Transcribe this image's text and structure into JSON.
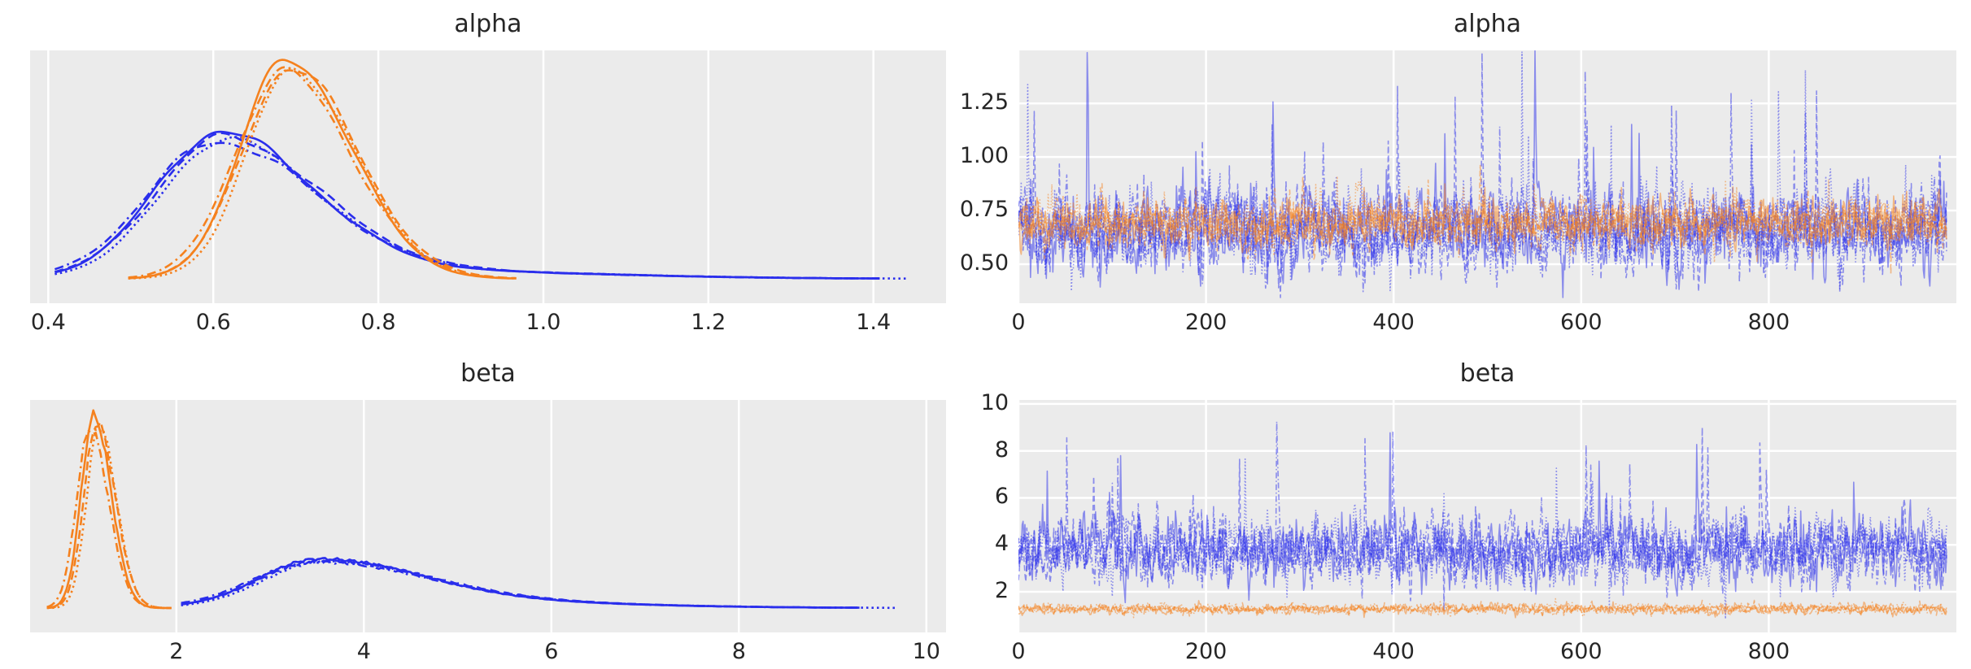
{
  "figure": {
    "bg_color": "#ffffff",
    "axes_bg_color": "#ebebeb",
    "grid_color": "#ffffff",
    "text_color": "#262626",
    "chain_colors": {
      "blue": "#2a2eec",
      "orange": "#f5811e"
    },
    "trace_opacity": 0.5,
    "n_chains_per_group": 4,
    "line_styles_by_chain": [
      "solid",
      "dashed",
      "dashdot",
      "dotted"
    ]
  },
  "chart_data": [
    {
      "id": "alpha-density",
      "type": "kde",
      "title": "alpha",
      "xlabel": "",
      "ylabel": "",
      "xlim": [
        0.378,
        1.488
      ],
      "xticks": [
        0.4,
        0.6,
        0.8,
        1.0,
        1.2,
        1.4
      ],
      "xtick_labels": [
        "0.4",
        "0.6",
        "0.8",
        "1.0",
        "1.2",
        "1.4"
      ],
      "yticks": [],
      "ytick_labels": [],
      "grid": "vertical",
      "baseline_frac": 0.0965,
      "series": [
        {
          "name": "alpha posterior, blue group (4 chains)",
          "color": "blue",
          "x_start": 0.408,
          "x_end": 1.41,
          "dotted_x_end": 1.445,
          "peak": 0.607,
          "peak_height_frac": 0.563,
          "sd_left": 0.078,
          "sd_right": 0.112,
          "tail": {
            "center": 0.85,
            "sd": 0.22,
            "height_frac": 0.03
          }
        },
        {
          "name": "alpha posterior, orange group (4 chains)",
          "color": "orange",
          "x_start": 0.497,
          "x_end": 0.97,
          "peak": 0.69,
          "peak_height_frac": 0.871,
          "sd_left": 0.056,
          "sd_right": 0.077
        }
      ]
    },
    {
      "id": "alpha-trace",
      "type": "trace",
      "title": "alpha",
      "xlabel": "",
      "ylabel": "",
      "xlim": [
        0,
        1000
      ],
      "ylim": [
        0.318,
        1.497
      ],
      "xticks": [
        0,
        200,
        400,
        600,
        800
      ],
      "xtick_labels": [
        "0",
        "200",
        "400",
        "600",
        "800"
      ],
      "yticks": [
        0.5,
        0.75,
        1.0,
        1.25
      ],
      "ytick_labels": [
        "0.50",
        "0.75",
        "1.00",
        "1.25"
      ],
      "grid": "both",
      "n_draws": 1000,
      "series": [
        {
          "name": "alpha draws, blue group (4 chains)",
          "color": "blue",
          "mean": 0.655,
          "sd": 0.09,
          "spike_max": 1.42,
          "spike_rate": 0.01,
          "dip_min": 0.44
        },
        {
          "name": "alpha draws, orange group (4 chains)",
          "color": "orange",
          "mean": 0.688,
          "sd": 0.052,
          "spike_max": 0.96,
          "spike_rate": 0.004,
          "dip_min": 0.5
        }
      ]
    },
    {
      "id": "beta-density",
      "type": "kde",
      "title": "beta",
      "xlabel": "",
      "ylabel": "",
      "xlim": [
        0.44,
        10.21
      ],
      "xticks": [
        2,
        4,
        6,
        8,
        10
      ],
      "xtick_labels": [
        "2",
        "4",
        "6",
        "8",
        "10"
      ],
      "yticks": [],
      "ytick_labels": [],
      "grid": "vertical",
      "baseline_frac": 0.105,
      "series": [
        {
          "name": "beta posterior, blue group (4 chains)",
          "color": "blue",
          "x_start": 2.05,
          "x_end": 9.3,
          "dotted_x_end": 9.7,
          "peak": 3.5,
          "peak_height_frac": 0.2,
          "sd_left": 0.62,
          "sd_right": 1.1,
          "tail": {
            "center": 5.4,
            "sd": 1.6,
            "height_frac": 0.022
          }
        },
        {
          "name": "beta posterior, orange group (4 chains)",
          "color": "orange",
          "x_start": 0.62,
          "x_end": 1.95,
          "peak": 1.12,
          "peak_height_frac": 0.825,
          "sd_left": 0.135,
          "sd_right": 0.185
        }
      ]
    },
    {
      "id": "beta-trace",
      "type": "trace",
      "title": "beta",
      "xlabel": "",
      "ylabel": "",
      "xlim": [
        0,
        1000
      ],
      "ylim": [
        0.27,
        10.17
      ],
      "xticks": [
        0,
        200,
        400,
        600,
        800
      ],
      "xtick_labels": [
        "0",
        "200",
        "400",
        "600",
        "800"
      ],
      "yticks": [
        2,
        4,
        6,
        8,
        10
      ],
      "ytick_labels": [
        "2",
        "4",
        "6",
        "8",
        "10"
      ],
      "grid": "both",
      "n_draws": 1000,
      "series": [
        {
          "name": "beta draws, blue group (4 chains)",
          "color": "blue",
          "mean": 3.75,
          "sd": 0.7,
          "spike_max": 9.5,
          "spike_rate": 0.008,
          "dip_min": 1.85
        },
        {
          "name": "beta draws, orange group (4 chains)",
          "color": "orange",
          "mean": 1.27,
          "sd": 0.1,
          "spike_max": 1.8,
          "spike_rate": 0.003,
          "dip_min": 0.95
        }
      ]
    }
  ]
}
